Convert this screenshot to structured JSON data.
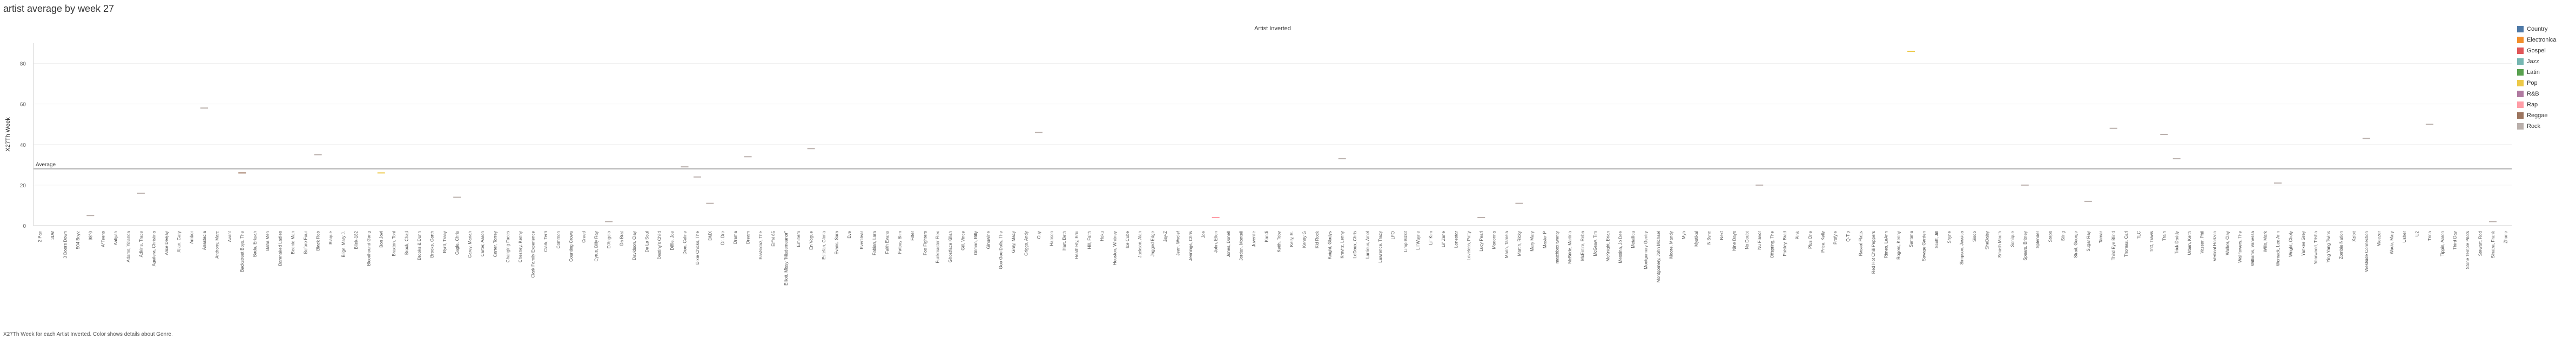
{
  "title": "artist average by week 27",
  "footnote": "X27Th Week for each Artist Inverted.  Color shows details about Genre.",
  "chart_data": {
    "type": "scatter",
    "title": "Artist Inverted",
    "xlabel": "",
    "ylabel": "X27Th Week",
    "ylim": [
      0,
      90
    ],
    "yticks": [
      0,
      20,
      40,
      60,
      80
    ],
    "grid": true,
    "legend_position": "right",
    "reference_line": {
      "label": "Average",
      "value": 28
    },
    "genres": [
      {
        "name": "Country",
        "color": "#4E79A7"
      },
      {
        "name": "Electronica",
        "color": "#F28E2B"
      },
      {
        "name": "Gospel",
        "color": "#E15759"
      },
      {
        "name": "Jazz",
        "color": "#76B7B2"
      },
      {
        "name": "Latin",
        "color": "#59A14F"
      },
      {
        "name": "Pop",
        "color": "#EDC948"
      },
      {
        "name": "R&B",
        "color": "#B07AA1"
      },
      {
        "name": "Rap",
        "color": "#FF9DA7"
      },
      {
        "name": "Reggae",
        "color": "#9C755F"
      },
      {
        "name": "Rock",
        "color": "#BAB0AC"
      }
    ],
    "points": [
      {
        "artist": "2 Pac",
        "week27": null
      },
      {
        "artist": "3LW",
        "week27": null
      },
      {
        "artist": "3 Doors Down",
        "week27": null
      },
      {
        "artist": "504 Boyz",
        "week27": null
      },
      {
        "artist": "98^0",
        "week27": 5,
        "genre": "Rock"
      },
      {
        "artist": "A*Teens",
        "week27": null
      },
      {
        "artist": "Aaliyah",
        "week27": null
      },
      {
        "artist": "Adams, Yolanda",
        "week27": null
      },
      {
        "artist": "Adkins, Trace",
        "week27": 16,
        "genre": "Rock"
      },
      {
        "artist": "Aguilera, Christina",
        "week27": null
      },
      {
        "artist": "Alice Deejay",
        "week27": null
      },
      {
        "artist": "Allan, Gary",
        "week27": null
      },
      {
        "artist": "Amber",
        "week27": null
      },
      {
        "artist": "Anastacia",
        "week27": 58,
        "genre": "Rock"
      },
      {
        "artist": "Anthony, Marc",
        "week27": null
      },
      {
        "artist": "Avant",
        "week27": null
      },
      {
        "artist": "Backstreet Boys, The",
        "week27": 26,
        "genre": "Reggae"
      },
      {
        "artist": "Badu, Erkyah",
        "week27": null
      },
      {
        "artist": "Baha Men",
        "week27": null
      },
      {
        "artist": "Barenaked Ladies",
        "week27": null
      },
      {
        "artist": "Beenie Man",
        "week27": null
      },
      {
        "artist": "Before Four",
        "week27": null
      },
      {
        "artist": "Black Rob",
        "week27": 35,
        "genre": "Rock"
      },
      {
        "artist": "Blaque",
        "week27": null
      },
      {
        "artist": "Blige, Mary J.",
        "week27": null
      },
      {
        "artist": "Blink-182",
        "week27": null
      },
      {
        "artist": "Bloodhound Gang",
        "week27": null
      },
      {
        "artist": "Bon Jovi",
        "week27": 26,
        "genre": "Pop"
      },
      {
        "artist": "Braxton, Toni",
        "week27": null
      },
      {
        "artist": "Brock, Chad",
        "week27": null
      },
      {
        "artist": "Brooks & Dunn",
        "week27": null
      },
      {
        "artist": "Brooks, Garth",
        "week27": null
      },
      {
        "artist": "Byrd, Tracy",
        "week27": null
      },
      {
        "artist": "Cagle, Chris",
        "week27": 14,
        "genre": "Rock"
      },
      {
        "artist": "Carey, Mariah",
        "week27": null
      },
      {
        "artist": "Carter, Aaron",
        "week27": null
      },
      {
        "artist": "Carter, Torrey",
        "week27": null
      },
      {
        "artist": "Changing Faces",
        "week27": null
      },
      {
        "artist": "Chesney, Kenny",
        "week27": null
      },
      {
        "artist": "Clark Family Experience",
        "week27": null
      },
      {
        "artist": "Clark, Terri",
        "week27": null
      },
      {
        "artist": "Common",
        "week27": null
      },
      {
        "artist": "Counting Crows",
        "week27": null
      },
      {
        "artist": "Creed",
        "week27": null
      },
      {
        "artist": "Cyrus, Billy Ray",
        "week27": null
      },
      {
        "artist": "D'Angelo",
        "week27": 2,
        "genre": "Rock"
      },
      {
        "artist": "Da Brat",
        "week27": null
      },
      {
        "artist": "Davidson, Clay",
        "week27": null
      },
      {
        "artist": "De La Soul",
        "week27": null
      },
      {
        "artist": "Destiny's Child",
        "week27": null
      },
      {
        "artist": "Diffie, Joe",
        "week27": null
      },
      {
        "artist": "Dion, Celine",
        "week27": 29,
        "genre": "Rock"
      },
      {
        "artist": "Dixie Chicks, The",
        "week27": 24,
        "genre": "Rock"
      },
      {
        "artist": "DMX",
        "week27": 11,
        "genre": "Rock"
      },
      {
        "artist": "Dr. Dre",
        "week27": null
      },
      {
        "artist": "Drama",
        "week27": null
      },
      {
        "artist": "Dream",
        "week27": 34,
        "genre": "Rock"
      },
      {
        "artist": "Eastsidaz, The",
        "week27": null
      },
      {
        "artist": "Eiffel 65",
        "week27": null
      },
      {
        "artist": "Elliott, Missy \"Misdemeanor\"",
        "week27": null
      },
      {
        "artist": "Eminem",
        "week27": null
      },
      {
        "artist": "En Vogue",
        "week27": 38,
        "genre": "Rock"
      },
      {
        "artist": "Estefan, Gloria",
        "week27": null
      },
      {
        "artist": "Evans, Sara",
        "week27": null
      },
      {
        "artist": "Eve",
        "week27": null
      },
      {
        "artist": "Everclear",
        "week27": null
      },
      {
        "artist": "Fabian, Lara",
        "week27": null
      },
      {
        "artist": "Faith Evans",
        "week27": null
      },
      {
        "artist": "Fatboy Slim",
        "week27": null
      },
      {
        "artist": "Filter",
        "week27": null
      },
      {
        "artist": "Foo Fighters",
        "week27": null
      },
      {
        "artist": "Funkmaster Flex",
        "week27": null
      },
      {
        "artist": "Ghostface Killah",
        "week27": null
      },
      {
        "artist": "Gill, Vince",
        "week27": null
      },
      {
        "artist": "Gilman, Billy",
        "week27": null
      },
      {
        "artist": "Ginuwine",
        "week27": null
      },
      {
        "artist": "Goo Goo Dolls, The",
        "week27": null
      },
      {
        "artist": "Gray, Macy",
        "week27": null
      },
      {
        "artist": "Griggs, Andy",
        "week27": null
      },
      {
        "artist": "Guy",
        "week27": 46,
        "genre": "Rock"
      },
      {
        "artist": "Hanson",
        "week27": null
      },
      {
        "artist": "Hart, Beth",
        "week27": null
      },
      {
        "artist": "Heatherly, Eric",
        "week27": null
      },
      {
        "artist": "Hill, Faith",
        "week27": null
      },
      {
        "artist": "Hoku",
        "week27": null
      },
      {
        "artist": "Houston, Whitney",
        "week27": null
      },
      {
        "artist": "Ice Cube",
        "week27": null
      },
      {
        "artist": "Jackson, Alan",
        "week27": null
      },
      {
        "artist": "Jagged Edge",
        "week27": null
      },
      {
        "artist": "Jay-Z",
        "week27": null
      },
      {
        "artist": "Jean, Wyclef",
        "week27": null
      },
      {
        "artist": "Jennings, Chris",
        "week27": null
      },
      {
        "artist": "Joe",
        "week27": null
      },
      {
        "artist": "John, Elton",
        "week27": 4,
        "genre": "Rap"
      },
      {
        "artist": "Jones, Donell",
        "week27": null
      },
      {
        "artist": "Jordan, Montell",
        "week27": null
      },
      {
        "artist": "Juvenile",
        "week27": null
      },
      {
        "artist": "Kandi",
        "week27": null
      },
      {
        "artist": "Keith, Toby",
        "week27": null
      },
      {
        "artist": "Kelly, R.",
        "week27": null
      },
      {
        "artist": "Kenny G",
        "week27": null
      },
      {
        "artist": "Kid Rock",
        "week27": null
      },
      {
        "artist": "Knight, Gladys",
        "week27": null
      },
      {
        "artist": "Kravitz, Lenny",
        "week27": 33,
        "genre": "Rock"
      },
      {
        "artist": "LeDoux, Chris",
        "week27": null
      },
      {
        "artist": "Larrieux, Amel",
        "week27": null
      },
      {
        "artist": "Lawrence, Tracy",
        "week27": null
      },
      {
        "artist": "LFO",
        "week27": null
      },
      {
        "artist": "Limp Bizkit",
        "week27": null
      },
      {
        "artist": "Lil Wayne",
        "week27": null
      },
      {
        "artist": "Lil' Kim",
        "week27": null
      },
      {
        "artist": "Lil' Zane",
        "week27": null
      },
      {
        "artist": "Lonestar",
        "week27": null
      },
      {
        "artist": "Loveless, Patty",
        "week27": null
      },
      {
        "artist": "Lucy Pearl",
        "week27": 4,
        "genre": "Rock"
      },
      {
        "artist": "Madonna",
        "week27": null
      },
      {
        "artist": "Mann, Tamela",
        "week27": null
      },
      {
        "artist": "Martin, Ricky",
        "week27": 11,
        "genre": "Rock"
      },
      {
        "artist": "Mary Mary",
        "week27": null
      },
      {
        "artist": "Master P",
        "week27": null
      },
      {
        "artist": "matchbox twenty",
        "week27": null
      },
      {
        "artist": "McBride, Martina",
        "week27": null
      },
      {
        "artist": "McEntire, Reba",
        "week27": null
      },
      {
        "artist": "McGraw, Tim",
        "week27": null
      },
      {
        "artist": "McKnight, Brian",
        "week27": null
      },
      {
        "artist": "Messina, Jo Dee",
        "week27": null
      },
      {
        "artist": "Metallica",
        "week27": null
      },
      {
        "artist": "Montgomery Gentry",
        "week27": null
      },
      {
        "artist": "Montgomery, John Michael",
        "week27": null
      },
      {
        "artist": "Moore, Mandy",
        "week27": null
      },
      {
        "artist": "Mya",
        "week27": null
      },
      {
        "artist": "Mystikal",
        "week27": null
      },
      {
        "artist": "N'Sync",
        "week27": null
      },
      {
        "artist": "Next",
        "week27": null
      },
      {
        "artist": "Nine Days",
        "week27": null
      },
      {
        "artist": "No Doubt",
        "week27": null
      },
      {
        "artist": "Nu Flavor",
        "week27": 20,
        "genre": "Rock"
      },
      {
        "artist": "Offspring, The",
        "week27": null
      },
      {
        "artist": "Paisley, Brad",
        "week27": null
      },
      {
        "artist": "Pink",
        "week27": null
      },
      {
        "artist": "Plus One",
        "week27": null
      },
      {
        "artist": "Price, Kelly",
        "week27": null
      },
      {
        "artist": "Profyle",
        "week27": null
      },
      {
        "artist": "Q-Tip",
        "week27": null
      },
      {
        "artist": "Rascal Flatts",
        "week27": null
      },
      {
        "artist": "Red Hot Chili Peppers",
        "week27": null
      },
      {
        "artist": "Rimes, LeAnn",
        "week27": null
      },
      {
        "artist": "Rogers, Kenny",
        "week27": null
      },
      {
        "artist": "Santana",
        "week27": 86,
        "genre": "Pop"
      },
      {
        "artist": "Savage Garden",
        "week27": null
      },
      {
        "artist": "Scott, Jill",
        "week27": null
      },
      {
        "artist": "Shyne",
        "week27": null
      },
      {
        "artist": "Simpson, Jessica",
        "week27": null
      },
      {
        "artist": "Sisqo",
        "week27": null
      },
      {
        "artist": "SheDaisy",
        "week27": null
      },
      {
        "artist": "Smash Mouth",
        "week27": null
      },
      {
        "artist": "Sonique",
        "week27": null
      },
      {
        "artist": "Spears, Britney",
        "week27": 20,
        "genre": "Rock"
      },
      {
        "artist": "Splender",
        "week27": null
      },
      {
        "artist": "Steps",
        "week27": null
      },
      {
        "artist": "Sting",
        "week27": null
      },
      {
        "artist": "Strait, George",
        "week27": null
      },
      {
        "artist": "Sugar Ray",
        "week27": 12,
        "genre": "Rock"
      },
      {
        "artist": "Tamar",
        "week27": null
      },
      {
        "artist": "Third Eye Blind",
        "week27": 48,
        "genre": "Rock"
      },
      {
        "artist": "Thomas, Carl",
        "week27": null
      },
      {
        "artist": "TLC",
        "week27": null
      },
      {
        "artist": "Tritt, Travis",
        "week27": null
      },
      {
        "artist": "Train",
        "week27": 45,
        "genre": "Rock"
      },
      {
        "artist": "Trick Daddy",
        "week27": 33,
        "genre": "Rock"
      },
      {
        "artist": "Urban, Keith",
        "week27": null
      },
      {
        "artist": "Vassar, Phil",
        "week27": null
      },
      {
        "artist": "Vertical Horizon",
        "week27": null
      },
      {
        "artist": "Walker, Clay",
        "week27": null
      },
      {
        "artist": "Wallflowers, The",
        "week27": null
      },
      {
        "artist": "Williams, Vanessa",
        "week27": null
      },
      {
        "artist": "Wills, Mark",
        "week27": null
      },
      {
        "artist": "Womack, Lee Ann",
        "week27": 21,
        "genre": "Rock"
      },
      {
        "artist": "Wright, Chely",
        "week27": null
      },
      {
        "artist": "Yankee Grey",
        "week27": null
      },
      {
        "artist": "Yearwood, Trisha",
        "week27": null
      },
      {
        "artist": "Ying Yang Twins",
        "week27": null
      },
      {
        "artist": "Zombie Nation",
        "week27": null
      },
      {
        "artist": "Xzibit",
        "week27": null
      },
      {
        "artist": "Westside Connection",
        "week27": 43,
        "genre": "Rock"
      },
      {
        "artist": "Weezer",
        "week27": null
      },
      {
        "artist": "Wade, Mary",
        "week27": null
      },
      {
        "artist": "Usher",
        "week27": null
      },
      {
        "artist": "U2",
        "week27": null
      },
      {
        "artist": "Trina",
        "week27": 50,
        "genre": "Rock"
      },
      {
        "artist": "Tippin, Aaron",
        "week27": null
      },
      {
        "artist": "Third Day",
        "week27": null
      },
      {
        "artist": "Stone Temple Pilots",
        "week27": null
      },
      {
        "artist": "Stewart, Rod",
        "week27": null
      },
      {
        "artist": "Sinatra, Frank",
        "week27": 2,
        "genre": "Rock"
      },
      {
        "artist": "Zhane",
        "week27": null
      }
    ]
  }
}
